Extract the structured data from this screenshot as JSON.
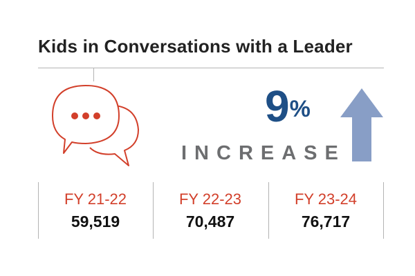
{
  "title": "Kids in Conversations with a Leader",
  "headline": {
    "percent": "9",
    "percent_sign": "%",
    "label": "INCREASE"
  },
  "icons": {
    "conversation": "speech-bubbles-icon",
    "increase": "up-arrow-icon"
  },
  "colors": {
    "accent_red": "#d23f2a",
    "percent_blue": "#1e4f86",
    "increase_gray": "#6d6e70",
    "arrow_blue": "#889ec6",
    "divider_gray": "#b3b3b3",
    "title_dark": "#222222"
  },
  "years": [
    {
      "label": "FY 21-22",
      "value": "59,519"
    },
    {
      "label": "FY 22-23",
      "value": "70,487"
    },
    {
      "label": "FY 23-24",
      "value": "76,717"
    }
  ]
}
